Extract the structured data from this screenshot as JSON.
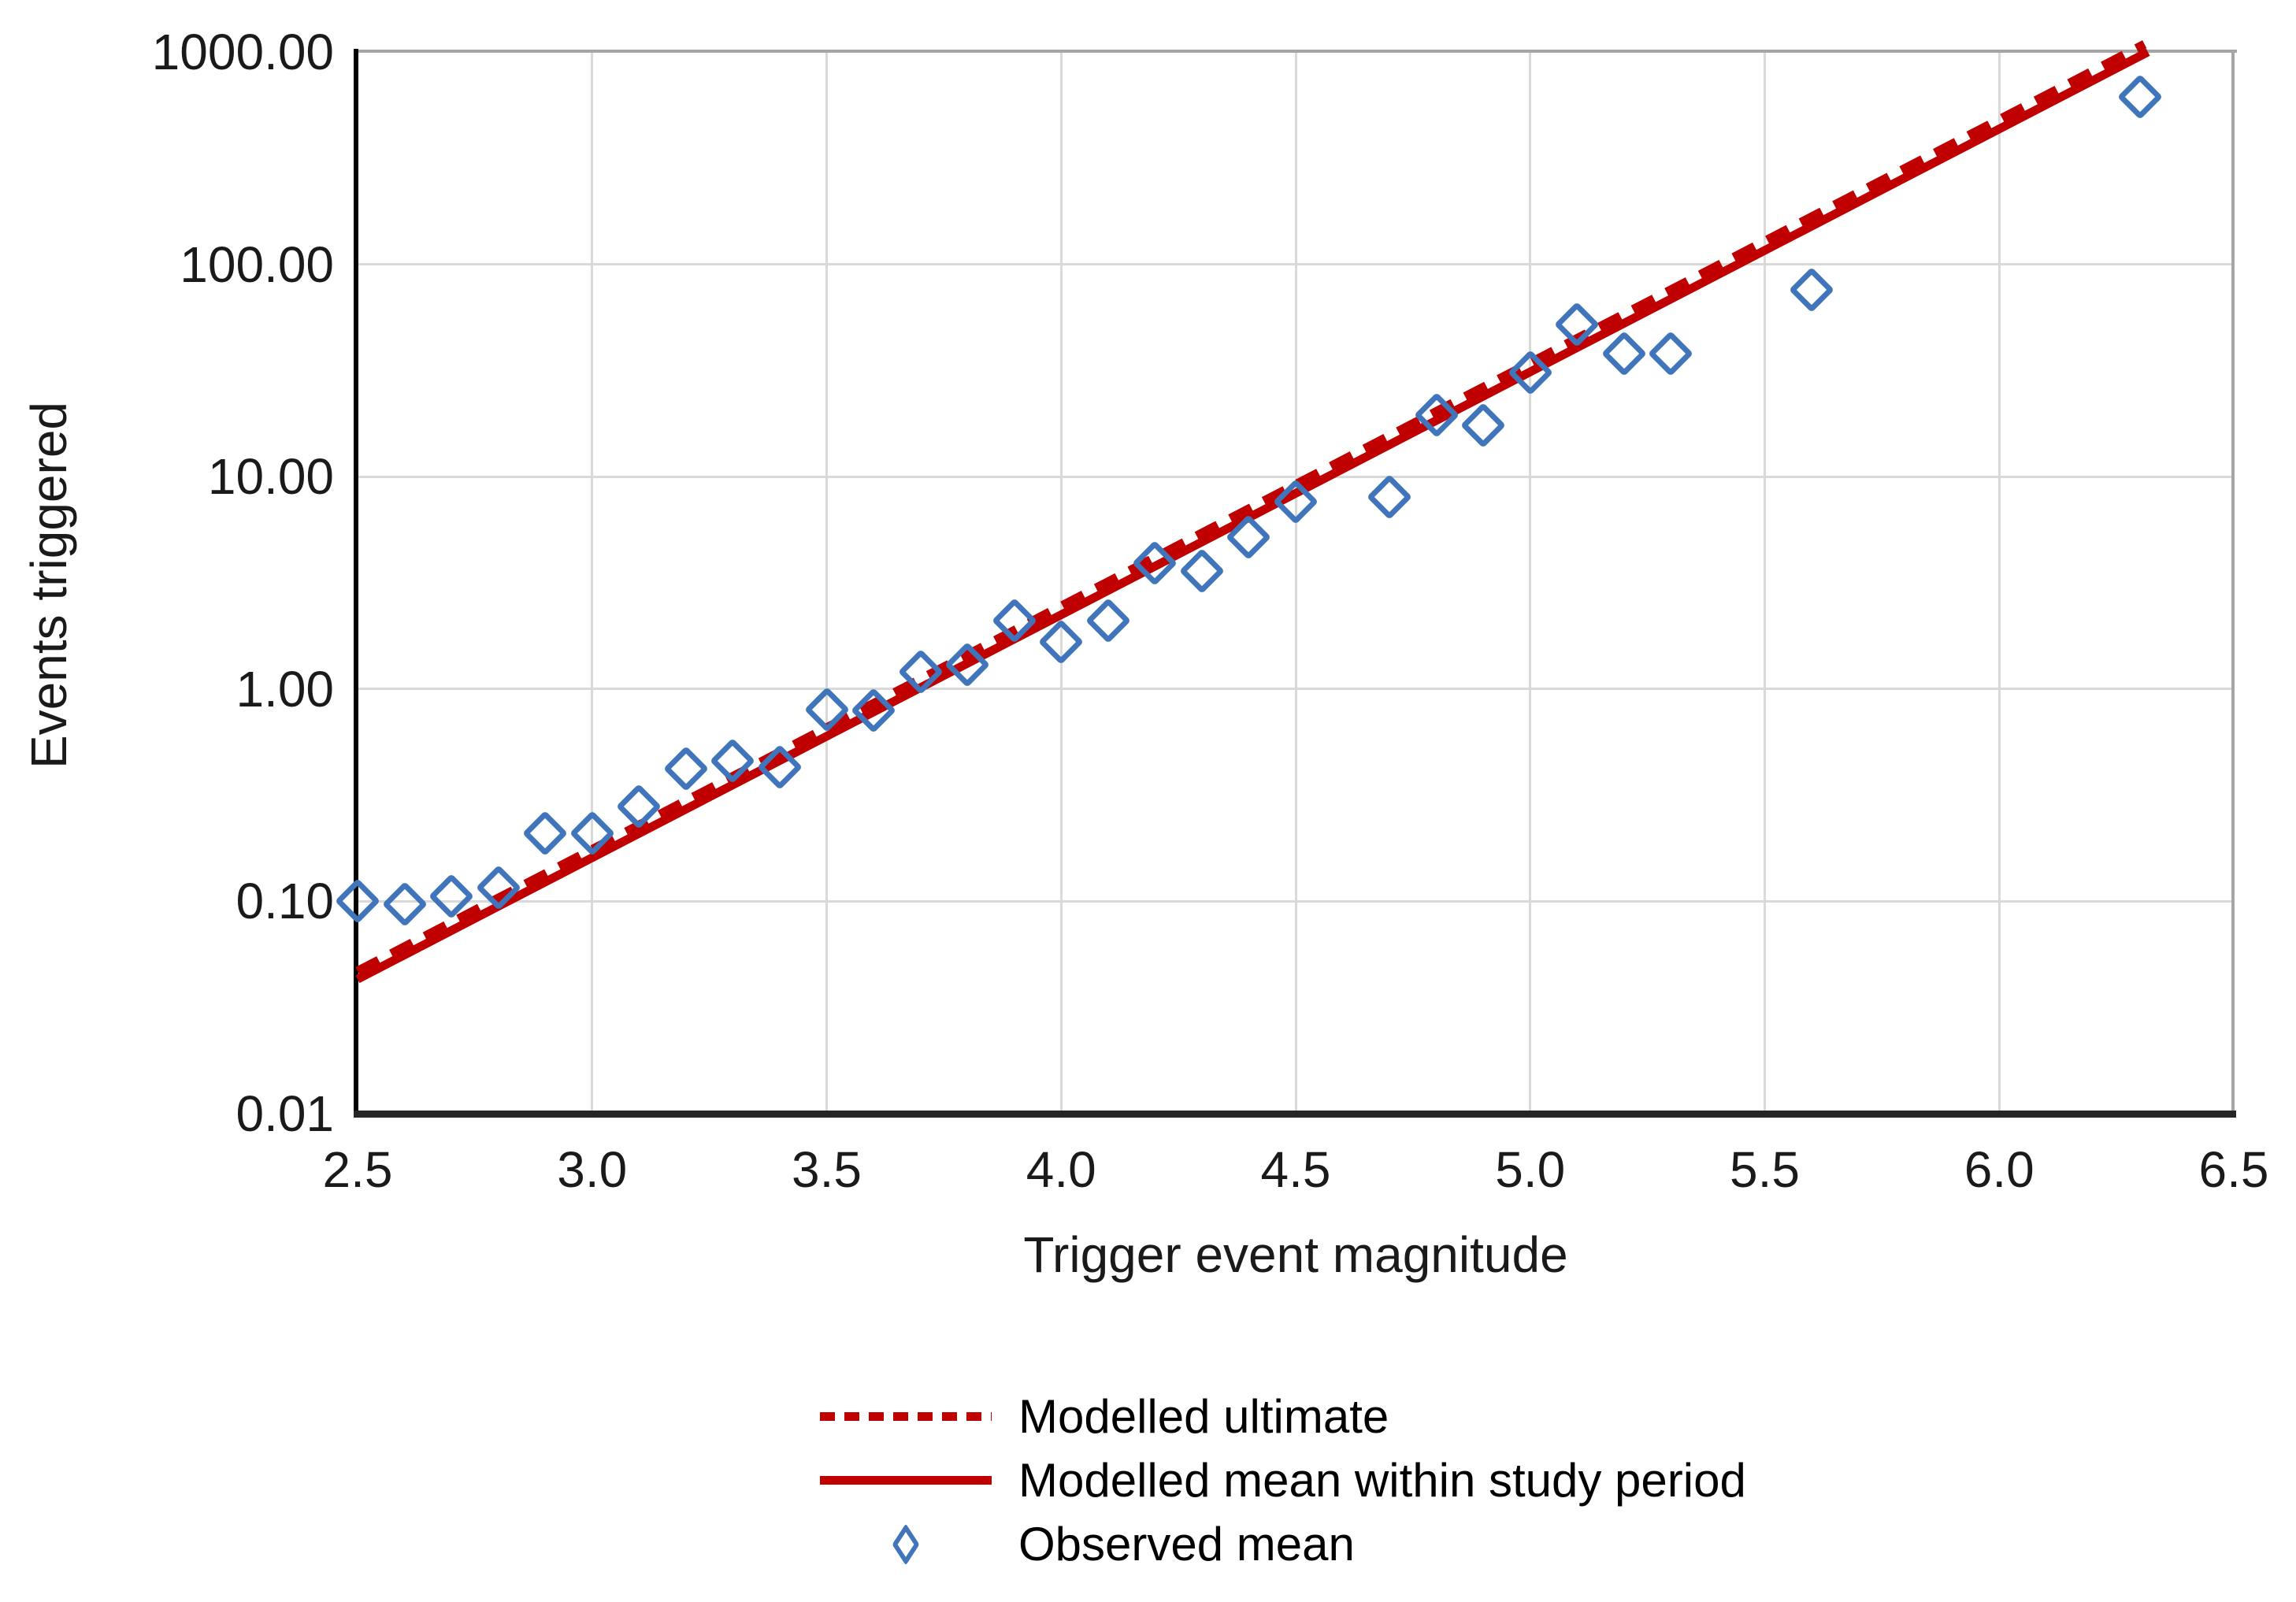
{
  "colors": {
    "model_line": "#c00000",
    "observed_marker": "#4075bb",
    "gridline": "#d9d9d9",
    "plot_border": "#a6a6a6",
    "axis": "#000000",
    "text": "#1a1a1a"
  },
  "chart_data": {
    "type": "scatter",
    "title": "",
    "xlabel": "Trigger event magnitude",
    "ylabel": "Events triggered",
    "grid": true,
    "legend_position": "bottom",
    "x_axis": {
      "min": 2.5,
      "max": 6.5,
      "ticks": [
        2.5,
        3.0,
        3.5,
        4.0,
        4.5,
        5.0,
        5.5,
        6.0,
        6.5
      ],
      "tick_labels": [
        "2.5",
        "3.0",
        "3.5",
        "4.0",
        "4.5",
        "5.0",
        "5.5",
        "6.0",
        "6.5"
      ]
    },
    "y_axis": {
      "scale": "log",
      "min": 0.01,
      "max": 1000,
      "ticks": [
        1000,
        100,
        10,
        1,
        0.1,
        0.01
      ],
      "tick_labels": [
        "1000.00",
        "100.00",
        "10.00",
        "1.00",
        "0.10",
        "0.01"
      ]
    },
    "legend": [
      "Modelled ultimate",
      "Modelled mean within study period",
      "Observed mean"
    ],
    "series": [
      {
        "name": "Modelled ultimate",
        "kind": "line",
        "dash": "dashed",
        "color": "#c00000",
        "points": [
          [
            2.5,
            0.047
          ],
          [
            6.5,
            1800
          ]
        ]
      },
      {
        "name": "Modelled mean within study period",
        "kind": "line",
        "dash": "solid",
        "color": "#c00000",
        "points": [
          [
            2.5,
            0.043
          ],
          [
            6.5,
            1620
          ]
        ]
      },
      {
        "name": "Observed mean",
        "kind": "scatter",
        "marker": "diamond",
        "color": "#4075bb",
        "points": [
          [
            2.5,
            0.1
          ],
          [
            2.6,
            0.097
          ],
          [
            2.7,
            0.106
          ],
          [
            2.8,
            0.116
          ],
          [
            2.9,
            0.21
          ],
          [
            3.0,
            0.21
          ],
          [
            3.1,
            0.28
          ],
          [
            3.2,
            0.42
          ],
          [
            3.3,
            0.46
          ],
          [
            3.4,
            0.43
          ],
          [
            3.5,
            0.8
          ],
          [
            3.6,
            0.79
          ],
          [
            3.7,
            1.2
          ],
          [
            3.8,
            1.3
          ],
          [
            3.9,
            2.1
          ],
          [
            4.0,
            1.67
          ],
          [
            4.1,
            2.1
          ],
          [
            4.2,
            3.9
          ],
          [
            4.3,
            3.6
          ],
          [
            4.4,
            5.2
          ],
          [
            4.5,
            7.6
          ],
          [
            4.7,
            8.0
          ],
          [
            4.8,
            19.5
          ],
          [
            4.9,
            17.5
          ],
          [
            5.0,
            31
          ],
          [
            5.1,
            52
          ],
          [
            5.2,
            38
          ],
          [
            5.3,
            38
          ],
          [
            5.6,
            76
          ],
          [
            6.3,
            615
          ]
        ]
      }
    ]
  }
}
